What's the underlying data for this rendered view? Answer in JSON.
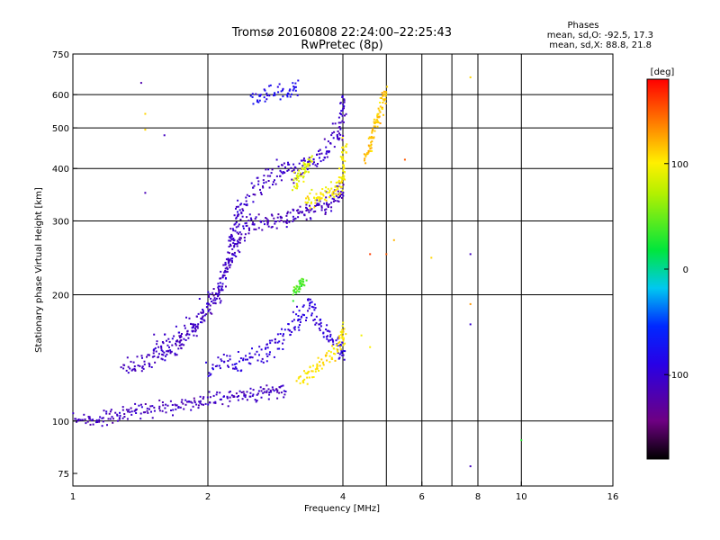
{
  "header": {
    "title": "Tromsø 20160808 22:24:00–22:25:43",
    "subtitle": "RwPretec (8p)"
  },
  "phases_box": {
    "heading": "Phases",
    "line_o": "mean, sd,O: -92.5, 17.3",
    "line_x": "mean, sd,X: 88.8, 21.8"
  },
  "chart_data": {
    "type": "scatter",
    "title": "Tromsø 20160808 22:24:00–22:25:43",
    "subtitle": "RwPretec (8p)",
    "xlabel": "Frequency [MHz]",
    "ylabel": "Stationary phase Virtual Height [km]",
    "xscale": "log",
    "yscale": "log",
    "xlim": [
      1,
      16
    ],
    "ylim": [
      70,
      750
    ],
    "x_ticks": [
      1,
      2,
      4,
      6,
      8,
      10,
      16
    ],
    "x_grid": [
      2,
      4,
      5,
      6,
      7,
      8,
      10
    ],
    "y_ticks": [
      75,
      100,
      200,
      300,
      400,
      500,
      600,
      750
    ],
    "y_grid": [
      100,
      200,
      300,
      400,
      500,
      600
    ],
    "grid": true,
    "colorbar": {
      "label": "[deg]",
      "range": [
        -180,
        180
      ],
      "ticks": [
        100,
        0,
        -100
      ]
    },
    "traces": [
      {
        "name": "",
        "points": [
          [
            1.0,
            101
          ],
          [
            1.1,
            100
          ],
          [
            1.2,
            102
          ],
          [
            1.3,
            104
          ],
          [
            1.4,
            106
          ],
          [
            1.55,
            107
          ],
          [
            1.7,
            108
          ],
          [
            1.85,
            110
          ],
          [
            2.0,
            112
          ],
          [
            2.2,
            114
          ],
          [
            2.4,
            115
          ],
          [
            2.6,
            116
          ],
          [
            2.8,
            117
          ],
          [
            3.0,
            118
          ]
        ],
        "phase": -110,
        "spread": 0.025
      },
      {
        "name": "",
        "points": [
          [
            1.3,
            130
          ],
          [
            1.4,
            135
          ],
          [
            1.5,
            140
          ],
          [
            1.6,
            146
          ],
          [
            1.7,
            150
          ],
          [
            1.8,
            160
          ],
          [
            1.9,
            170
          ],
          [
            2.0,
            185
          ],
          [
            2.1,
            200
          ],
          [
            2.2,
            230
          ],
          [
            2.3,
            260
          ],
          [
            2.4,
            285
          ],
          [
            2.5,
            300
          ],
          [
            2.7,
            303
          ],
          [
            2.9,
            305
          ],
          [
            3.1,
            308
          ],
          [
            3.3,
            312
          ],
          [
            3.5,
            320
          ],
          [
            3.7,
            330
          ],
          [
            3.9,
            345
          ],
          [
            4.0,
            360
          ]
        ],
        "phase": -110,
        "spread": 0.035
      },
      {
        "name": "",
        "points": [
          [
            1.5,
            150
          ],
          [
            1.7,
            160
          ],
          [
            1.9,
            175
          ],
          [
            2.1,
            200
          ],
          [
            2.2,
            230
          ],
          [
            2.25,
            260
          ],
          [
            2.3,
            290
          ],
          [
            2.35,
            320
          ],
          [
            2.5,
            350
          ],
          [
            2.7,
            380
          ],
          [
            2.9,
            390
          ],
          [
            3.1,
            395
          ],
          [
            3.3,
            405
          ],
          [
            3.5,
            420
          ],
          [
            3.7,
            440
          ],
          [
            3.9,
            480
          ],
          [
            4.0,
            520
          ],
          [
            4.0,
            600
          ]
        ],
        "phase": -105,
        "spread": 0.04
      },
      {
        "name": "",
        "points": [
          [
            2.0,
            130
          ],
          [
            2.2,
            135
          ],
          [
            2.4,
            140
          ],
          [
            2.6,
            145
          ],
          [
            2.8,
            150
          ],
          [
            3.0,
            160
          ],
          [
            3.2,
            175
          ],
          [
            3.35,
            190
          ],
          [
            3.5,
            175
          ],
          [
            3.7,
            160
          ],
          [
            3.9,
            150
          ],
          [
            4.0,
            145
          ]
        ],
        "phase": -95,
        "spread": 0.04
      },
      {
        "name": "",
        "points": [
          [
            3.2,
            125
          ],
          [
            3.4,
            130
          ],
          [
            3.6,
            138
          ],
          [
            3.8,
            145
          ],
          [
            4.0,
            155
          ],
          [
            4.0,
            170
          ]
        ],
        "phase": 105,
        "spread": 0.03
      },
      {
        "name": "",
        "points": [
          [
            3.3,
            330
          ],
          [
            3.5,
            340
          ],
          [
            3.7,
            350
          ],
          [
            3.9,
            360
          ],
          [
            4.0,
            380
          ],
          [
            4.0,
            420
          ],
          [
            4.05,
            460
          ]
        ],
        "phase": 100,
        "spread": 0.03
      },
      {
        "name": "",
        "points": [
          [
            4.5,
            420
          ],
          [
            4.6,
            460
          ],
          [
            4.7,
            500
          ],
          [
            4.8,
            540
          ],
          [
            4.9,
            580
          ],
          [
            5.0,
            620
          ]
        ],
        "phase": 115,
        "spread": 0.025
      },
      {
        "name": "",
        "points": [
          [
            3.1,
            360
          ],
          [
            3.2,
            380
          ],
          [
            3.3,
            400
          ],
          [
            3.4,
            420
          ]
        ],
        "phase": 90,
        "spread": 0.03
      },
      {
        "name": "",
        "points": [
          [
            3.1,
            200
          ],
          [
            3.2,
            210
          ],
          [
            3.3,
            215
          ]
        ],
        "phase": 40,
        "spread": 0.02
      },
      {
        "name": "",
        "points": [
          [
            2.5,
            590
          ],
          [
            2.7,
            600
          ],
          [
            3.0,
            610
          ],
          [
            3.2,
            630
          ]
        ],
        "phase": -80,
        "spread": 0.03
      }
    ],
    "scattered_points": [
      {
        "x": 1.42,
        "y": 640,
        "phase": -120
      },
      {
        "x": 1.45,
        "y": 540,
        "phase": 110
      },
      {
        "x": 1.45,
        "y": 495,
        "phase": 110
      },
      {
        "x": 1.6,
        "y": 480,
        "phase": -110
      },
      {
        "x": 1.45,
        "y": 350,
        "phase": -115
      },
      {
        "x": 7.7,
        "y": 250,
        "phase": -110
      },
      {
        "x": 7.7,
        "y": 190,
        "phase": 130
      },
      {
        "x": 7.7,
        "y": 170,
        "phase": -100
      },
      {
        "x": 7.7,
        "y": 78,
        "phase": -110
      },
      {
        "x": 10.0,
        "y": 90,
        "phase": 30
      },
      {
        "x": 5.2,
        "y": 270,
        "phase": 120
      },
      {
        "x": 5.0,
        "y": 250,
        "phase": 150
      },
      {
        "x": 4.6,
        "y": 250,
        "phase": 160
      },
      {
        "x": 6.3,
        "y": 245,
        "phase": 110
      },
      {
        "x": 7.7,
        "y": 660,
        "phase": 110
      },
      {
        "x": 5.5,
        "y": 420,
        "phase": 150
      },
      {
        "x": 4.6,
        "y": 150,
        "phase": 100
      },
      {
        "x": 4.4,
        "y": 160,
        "phase": 95
      }
    ]
  },
  "colors": {
    "axis": "#000000",
    "background": "#ffffff"
  }
}
